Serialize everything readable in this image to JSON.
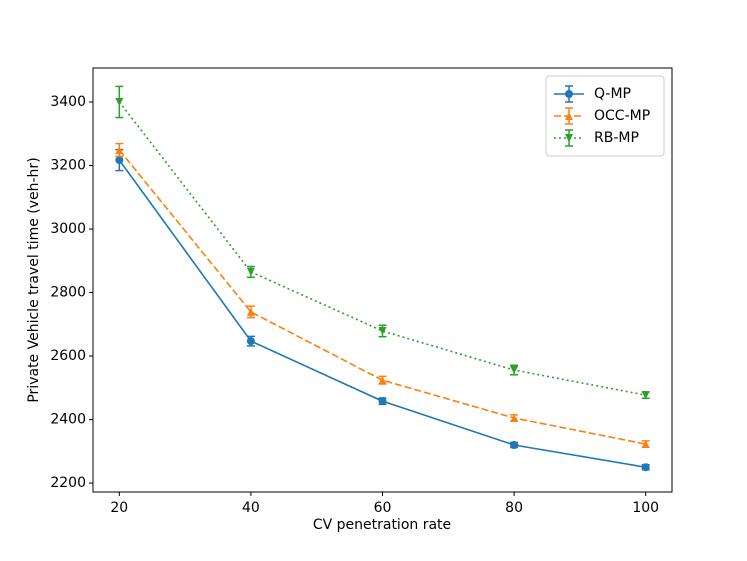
{
  "chart_data": {
    "type": "line",
    "xlabel": "CV penetration rate",
    "ylabel": "Private Vehicle travel time (veh-hr)",
    "x": [
      20,
      40,
      60,
      80,
      100
    ],
    "series": [
      {
        "name": "Q-MP",
        "color": "#1f77b4",
        "marker": "circle",
        "linestyle": "solid",
        "values": [
          3217,
          2647,
          2458,
          2320,
          2250
        ],
        "errors": [
          33,
          15,
          10,
          8,
          8
        ]
      },
      {
        "name": "OCC-MP",
        "color": "#ff7f0e",
        "marker": "triangle-up",
        "linestyle": "dashed",
        "values": [
          3249,
          2739,
          2524,
          2405,
          2323
        ],
        "errors": [
          20,
          18,
          12,
          10,
          10
        ]
      },
      {
        "name": "RB-MP",
        "color": "#2ca02c",
        "marker": "triangle-down",
        "linestyle": "dotted",
        "values": [
          3400,
          2865,
          2679,
          2556,
          2477
        ],
        "errors": [
          49,
          17,
          18,
          15,
          10
        ]
      }
    ],
    "xlim": [
      16,
      104
    ],
    "xticks": [
      20,
      40,
      60,
      80,
      100
    ],
    "ylim": [
      2172,
      3507
    ],
    "yticks": [
      2200,
      2400,
      2600,
      2800,
      3000,
      3200,
      3400
    ],
    "legend": "upper right"
  }
}
